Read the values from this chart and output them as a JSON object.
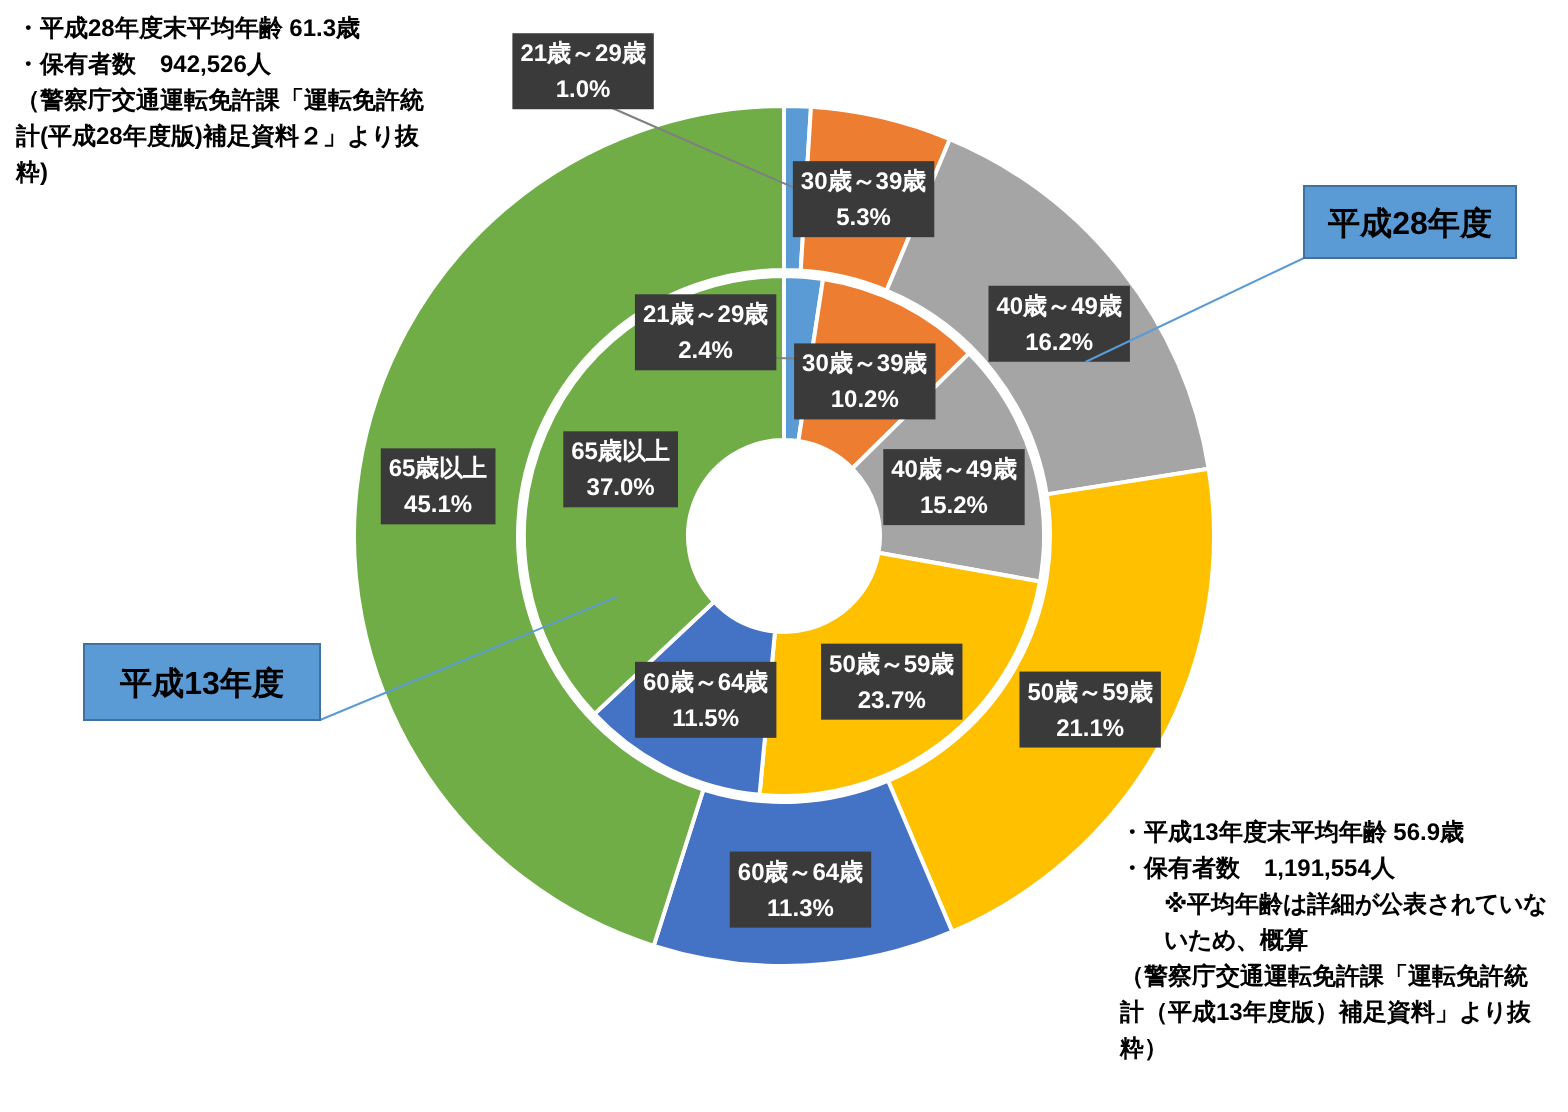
{
  "chart_data": {
    "type": "donut",
    "categories": [
      "21歳～29歳",
      "30歳～39歳",
      "40歳～49歳",
      "50歳～59歳",
      "60歳～64歳",
      "65歳以上"
    ],
    "series": [
      {
        "name": "平成28年度",
        "values": [
          1.0,
          5.3,
          16.2,
          21.1,
          11.3,
          45.1
        ],
        "value_labels": [
          "1.0%",
          "5.3%",
          "16.2%",
          "21.1%",
          "11.3%",
          "45.1%"
        ],
        "colors": [
          "#5b9bd5",
          "#ed7d31",
          "#a5a5a5",
          "#ffc000",
          "#4472c4",
          "#70ad47"
        ]
      },
      {
        "name": "平成13年度",
        "values": [
          2.4,
          10.2,
          15.2,
          23.7,
          11.5,
          37.0
        ],
        "value_labels": [
          "2.4%",
          "10.2%",
          "15.2%",
          "23.7%",
          "11.5%",
          "37.0%"
        ],
        "colors": [
          "#5b9bd5",
          "#ed7d31",
          "#a5a5a5",
          "#ffc000",
          "#4472c4",
          "#70ad47"
        ]
      }
    ],
    "annotations": [
      "・平成28年度末平均年齢  61.3歳",
      "・保有者数　942,526人",
      "（警察庁交通運転免許課「運転免許統計(平成28年度版)補足資料２」より抜粋)",
      "・平成13年度末平均年齢  56.9歳",
      "・保有者数　1,191,554人",
      "※平均年齢は詳細が公表されていないため、概算",
      "（警察庁交通運転免許課「運転免許統計（平成13年度版）補足資料」より抜粋）"
    ]
  }
}
